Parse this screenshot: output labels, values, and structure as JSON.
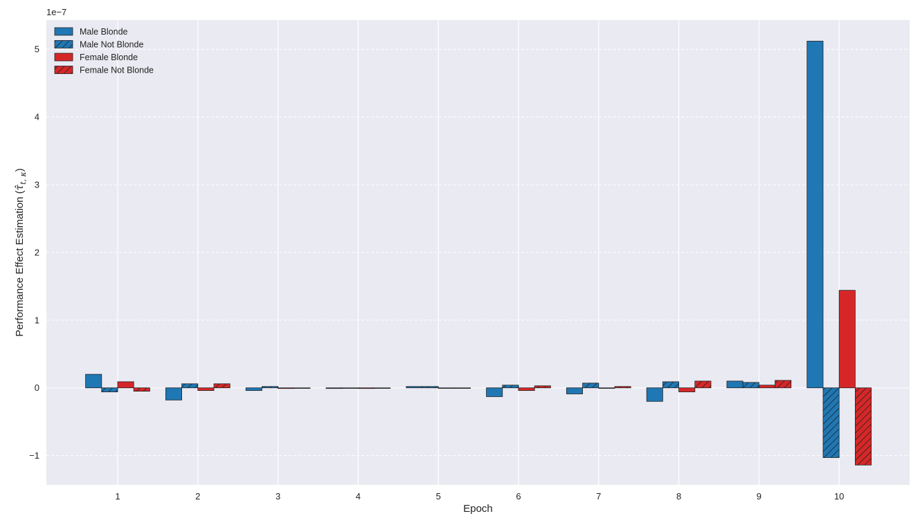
{
  "chart_data": {
    "type": "bar",
    "title": "",
    "xlabel": "Epoch",
    "ylabel": "Performance Effect Estimation (",
    "ylabel_math": "τ̂",
    "ylabel_sub": "t, κ",
    "ylabel_close": ")",
    "y_multiplier_label": "1e−7",
    "categories": [
      "1",
      "2",
      "3",
      "4",
      "5",
      "6",
      "7",
      "8",
      "9",
      "10"
    ],
    "yticks": [
      -1,
      0,
      1,
      2,
      3,
      4,
      5
    ],
    "ytick_labels": [
      "−1",
      "0",
      "1",
      "2",
      "3",
      "4",
      "5"
    ],
    "ylim": [
      -1.45,
      5.55
    ],
    "grid": true,
    "legend_position": "top-left",
    "series": [
      {
        "name": "Male Blonde",
        "color": "#1f77b4",
        "hatch": false,
        "values": [
          0.2,
          -0.18,
          -0.04,
          -0.01,
          0.02,
          -0.13,
          -0.09,
          -0.2,
          0.1,
          5.12
        ]
      },
      {
        "name": "Male Not Blonde",
        "color": "#1f77b4",
        "hatch": true,
        "values": [
          -0.06,
          0.06,
          0.02,
          0.0,
          0.02,
          0.04,
          0.07,
          0.09,
          0.08,
          -1.03
        ]
      },
      {
        "name": "Female Blonde",
        "color": "#d62728",
        "hatch": false,
        "values": [
          0.09,
          -0.04,
          -0.01,
          -0.01,
          0.0,
          -0.04,
          0.0,
          -0.06,
          0.04,
          1.44
        ]
      },
      {
        "name": "Female Not Blonde",
        "color": "#d62728",
        "hatch": true,
        "values": [
          -0.05,
          0.06,
          0.0,
          0.0,
          0.0,
          0.03,
          0.02,
          0.1,
          0.11,
          -1.14
        ]
      }
    ]
  }
}
